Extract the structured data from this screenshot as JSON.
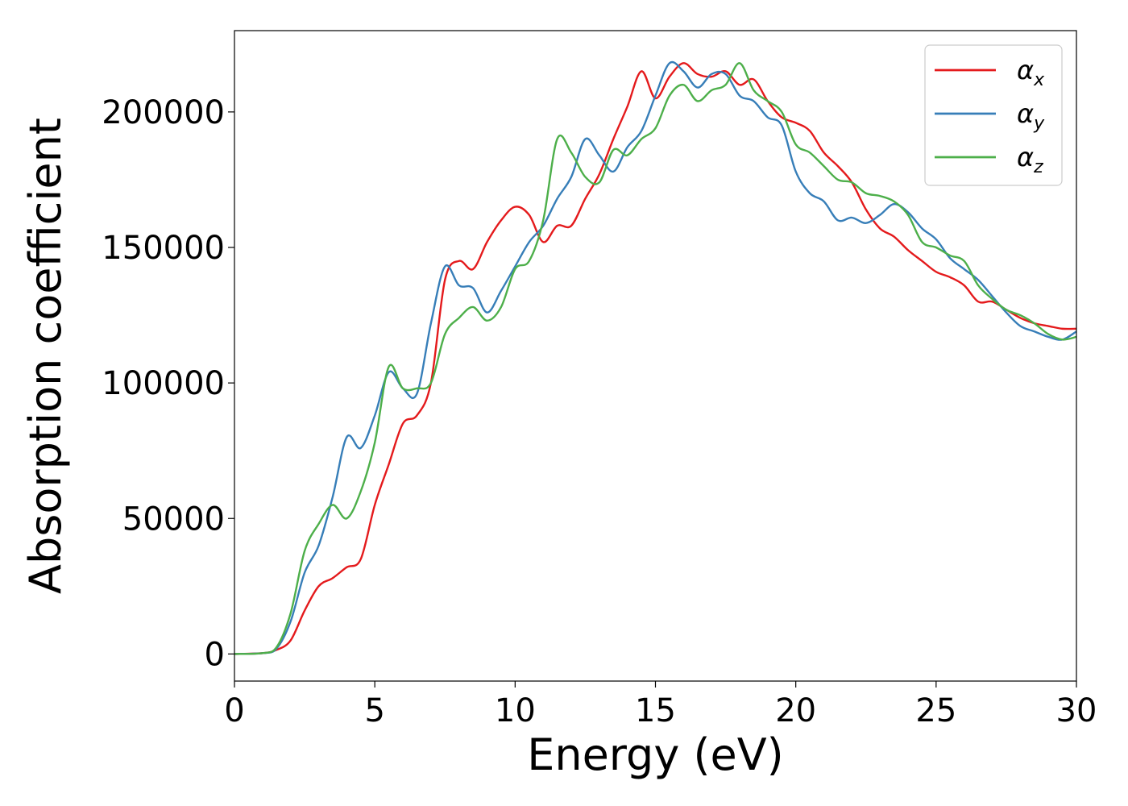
{
  "chart_data": {
    "type": "line",
    "title": "",
    "xlabel": "Energy (eV)",
    "ylabel": "Absorption coefficient",
    "xlim": [
      0,
      30
    ],
    "ylim": [
      -10000,
      230000
    ],
    "grid": false,
    "legend_position": "top-right",
    "x_ticks": [
      0,
      5,
      10,
      15,
      20,
      25,
      30
    ],
    "x_tick_labels": [
      "0",
      "5",
      "10",
      "15",
      "20",
      "25",
      "30"
    ],
    "y_ticks": [
      0,
      50000,
      100000,
      150000,
      200000
    ],
    "y_tick_labels": [
      "0",
      "50000",
      "100000",
      "150000",
      "200000"
    ],
    "series": [
      {
        "name": "αx",
        "legend_base": "α",
        "legend_sub": "x",
        "color": "#e41a1c",
        "x": [
          0,
          1,
          1.5,
          2,
          2.5,
          3,
          3.5,
          4,
          4.5,
          5,
          5.5,
          6,
          6.5,
          7,
          7.5,
          8,
          8.5,
          9,
          9.5,
          10,
          10.5,
          11,
          11.5,
          12,
          12.5,
          13,
          13.5,
          14,
          14.5,
          15,
          15.5,
          16,
          16.5,
          17,
          17.5,
          18,
          18.5,
          19,
          19.5,
          20,
          20.5,
          21,
          21.5,
          22,
          22.5,
          23,
          23.5,
          24,
          24.5,
          25,
          25.5,
          26,
          26.5,
          27,
          27.5,
          28,
          28.5,
          29,
          29.5,
          30
        ],
        "y": [
          0,
          300,
          1500,
          5000,
          16000,
          25000,
          28000,
          32000,
          35000,
          55000,
          70000,
          85000,
          88000,
          100000,
          138000,
          145000,
          142000,
          152000,
          160000,
          165000,
          162000,
          152000,
          158000,
          158000,
          168000,
          177000,
          190000,
          202000,
          215000,
          205000,
          213000,
          218000,
          214000,
          213000,
          215000,
          210000,
          212000,
          204000,
          198000,
          196000,
          193000,
          185000,
          180000,
          174000,
          164000,
          157000,
          154000,
          149000,
          145000,
          141000,
          139000,
          136000,
          130000,
          130000,
          127000,
          124000,
          122000,
          121000,
          120000,
          120000
        ]
      },
      {
        "name": "αy",
        "legend_base": "α",
        "legend_sub": "y",
        "color": "#377eb8",
        "x": [
          0,
          1,
          1.5,
          2,
          2.5,
          3,
          3.5,
          4,
          4.5,
          5,
          5.5,
          6,
          6.5,
          7,
          7.5,
          8,
          8.5,
          9,
          9.5,
          10,
          10.5,
          11,
          11.5,
          12,
          12.5,
          13,
          13.5,
          14,
          14.5,
          15,
          15.5,
          16,
          16.5,
          17,
          17.5,
          18,
          18.5,
          19,
          19.5,
          20,
          20.5,
          21,
          21.5,
          22,
          22.5,
          23,
          23.5,
          24,
          24.5,
          25,
          25.5,
          26,
          26.5,
          27,
          27.5,
          28,
          28.5,
          29,
          29.5,
          30
        ],
        "y": [
          0,
          300,
          2000,
          12000,
          30000,
          40000,
          58000,
          80000,
          76000,
          88000,
          104000,
          98000,
          96000,
          122000,
          143000,
          136000,
          135000,
          126000,
          134000,
          143000,
          152000,
          158000,
          168000,
          176000,
          190000,
          184000,
          178000,
          187000,
          193000,
          206000,
          218000,
          215000,
          209000,
          214000,
          214000,
          206000,
          204000,
          198000,
          195000,
          178000,
          170000,
          167000,
          160000,
          161000,
          159000,
          162000,
          166000,
          163000,
          157000,
          153000,
          146000,
          142000,
          138000,
          132000,
          126000,
          121000,
          119000,
          117000,
          116000,
          119000
        ]
      },
      {
        "name": "αz",
        "legend_base": "α",
        "legend_sub": "z",
        "color": "#4daf4a",
        "x": [
          0,
          1,
          1.5,
          2,
          2.5,
          3,
          3.5,
          4,
          4.5,
          5,
          5.5,
          6,
          6.5,
          7,
          7.5,
          8,
          8.5,
          9,
          9.5,
          10,
          10.5,
          11,
          11.5,
          12,
          12.5,
          13,
          13.5,
          14,
          14.5,
          15,
          15.5,
          16,
          16.5,
          17,
          17.5,
          18,
          18.5,
          19,
          19.5,
          20,
          20.5,
          21,
          21.5,
          22,
          22.5,
          23,
          23.5,
          24,
          24.5,
          25,
          25.5,
          26,
          26.5,
          27,
          27.5,
          28,
          28.5,
          29,
          29.5,
          30
        ],
        "y": [
          0,
          300,
          2500,
          15000,
          38000,
          48000,
          55000,
          50000,
          60000,
          78000,
          106000,
          98000,
          98000,
          100000,
          118000,
          124000,
          128000,
          123000,
          128000,
          142000,
          145000,
          160000,
          190000,
          185000,
          176000,
          174000,
          186000,
          184000,
          190000,
          194000,
          206000,
          210000,
          204000,
          208000,
          210000,
          218000,
          208000,
          204000,
          200000,
          188000,
          185000,
          180000,
          175000,
          174000,
          170000,
          169000,
          167000,
          162000,
          152000,
          150000,
          147000,
          145000,
          136000,
          131000,
          127000,
          125000,
          122000,
          118000,
          116000,
          117000
        ]
      }
    ]
  }
}
